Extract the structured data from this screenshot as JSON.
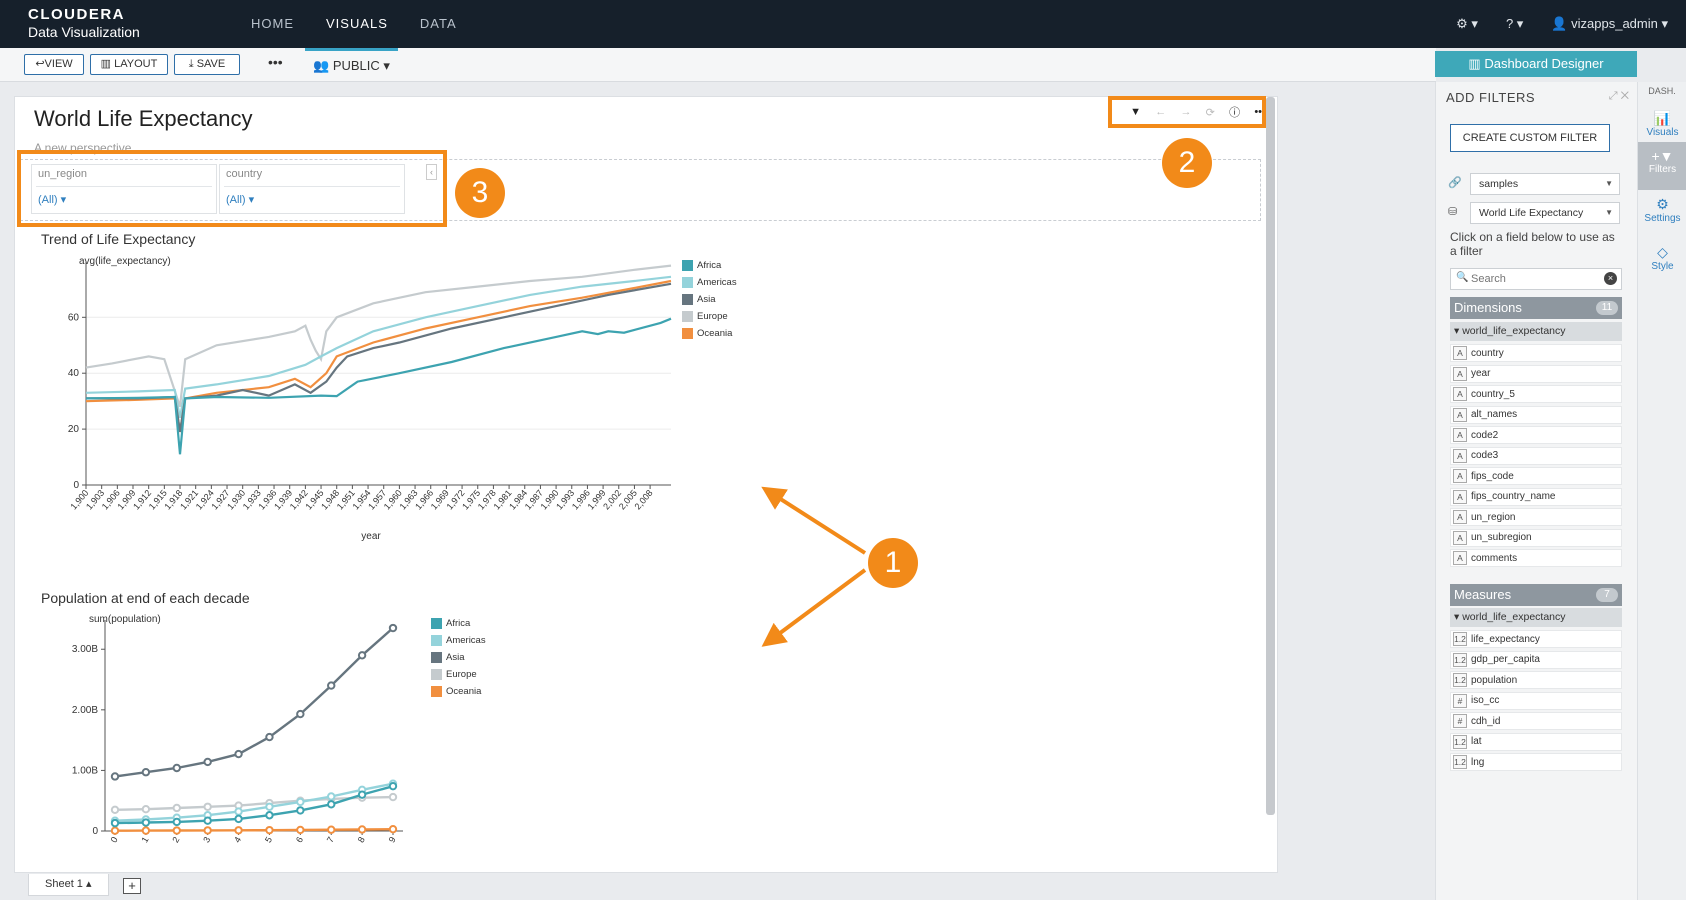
{
  "brand": {
    "line1": "CLOUDERA",
    "line2": "Data Visualization"
  },
  "nav": [
    {
      "label": "HOME"
    },
    {
      "label": "VISUALS"
    },
    {
      "label": "DATA"
    }
  ],
  "top_right": {
    "settings": "⚙ ▾",
    "help": "? ▾",
    "user": "vizapps_admin"
  },
  "toolbar": {
    "view": "↩VIEW",
    "layout": "LAYOUT",
    "save": "SAVE",
    "more": "•••",
    "public": "PUBLIC ▾"
  },
  "designer_button": "Dashboard Designer",
  "dashboard": {
    "title": "World Life Expectancy",
    "subtitle": "A new perspective"
  },
  "filters": [
    {
      "name": "un_region",
      "value": "(All) ▾"
    },
    {
      "name": "country",
      "value": "(All) ▾"
    }
  ],
  "sheet_tab": "Sheet 1 ▴",
  "legend": [
    {
      "name": "Africa",
      "color": "#3da3b0"
    },
    {
      "name": "Americas",
      "color": "#94d3db"
    },
    {
      "name": "Asia",
      "color": "#66757f"
    },
    {
      "name": "Europe",
      "color": "#c5cbce"
    },
    {
      "name": "Oceania",
      "color": "#f18f3f"
    }
  ],
  "chart_data": [
    {
      "type": "line",
      "title": "Trend of Life Expectancy",
      "xlabel": "year",
      "ylabel": "avg(life_expectancy)",
      "ylim": [
        0,
        78
      ],
      "yticks": [
        0,
        20,
        40,
        60
      ],
      "xlim": [
        1900,
        2012
      ],
      "xtick_labels": [
        "1,900",
        "1,903",
        "1,906",
        "1,909",
        "1,912",
        "1,915",
        "1,918",
        "1,921",
        "1,924",
        "1,927",
        "1,930",
        "1,933",
        "1,936",
        "1,939",
        "1,942",
        "1,945",
        "1,948",
        "1,951",
        "1,954",
        "1,957",
        "1,960",
        "1,963",
        "1,966",
        "1,969",
        "1,972",
        "1,975",
        "1,978",
        "1,981",
        "1,984",
        "1,987",
        "1,990",
        "1,993",
        "1,996",
        "1,999",
        "2,002",
        "2,005",
        "2,008"
      ],
      "series": [
        {
          "name": "Africa",
          "points": [
            [
              1900,
              31
            ],
            [
              1910,
              31.2
            ],
            [
              1917,
              31.5
            ],
            [
              1918,
              11
            ],
            [
              1919,
              31
            ],
            [
              1925,
              31.5
            ],
            [
              1935,
              31.2
            ],
            [
              1945,
              32
            ],
            [
              1948,
              31.8
            ],
            [
              1952,
              37
            ],
            [
              1960,
              40
            ],
            [
              1970,
              44
            ],
            [
              1980,
              49
            ],
            [
              1990,
              53
            ],
            [
              1995,
              55
            ],
            [
              1998,
              54
            ],
            [
              2000,
              55
            ],
            [
              2003,
              54.5
            ],
            [
              2010,
              58
            ],
            [
              2012,
              59.5
            ]
          ]
        },
        {
          "name": "Americas",
          "points": [
            [
              1900,
              33
            ],
            [
              1910,
              33.5
            ],
            [
              1917,
              34
            ],
            [
              1918,
              24
            ],
            [
              1919,
              34.5
            ],
            [
              1925,
              36
            ],
            [
              1935,
              39
            ],
            [
              1942,
              43
            ],
            [
              1945,
              46
            ],
            [
              1948,
              49
            ],
            [
              1955,
              55
            ],
            [
              1965,
              60
            ],
            [
              1975,
              64
            ],
            [
              1985,
              68
            ],
            [
              1995,
              71
            ],
            [
              2005,
              73
            ],
            [
              2012,
              74.5
            ]
          ]
        },
        {
          "name": "Asia",
          "points": [
            [
              1900,
              31
            ],
            [
              1910,
              31
            ],
            [
              1917,
              31.5
            ],
            [
              1918,
              19
            ],
            [
              1919,
              31
            ],
            [
              1925,
              32
            ],
            [
              1930,
              34
            ],
            [
              1935,
              32
            ],
            [
              1940,
              36
            ],
            [
              1943,
              33
            ],
            [
              1946,
              37
            ],
            [
              1948,
              42
            ],
            [
              1950,
              46
            ],
            [
              1955,
              49
            ],
            [
              1960,
              51
            ],
            [
              1970,
              56
            ],
            [
              1980,
              60
            ],
            [
              1990,
              64
            ],
            [
              2000,
              68
            ],
            [
              2012,
              72
            ]
          ]
        },
        {
          "name": "Europe",
          "points": [
            [
              1900,
              42
            ],
            [
              1905,
              43.5
            ],
            [
              1912,
              46
            ],
            [
              1915,
              45
            ],
            [
              1918,
              28
            ],
            [
              1919,
              45
            ],
            [
              1925,
              50
            ],
            [
              1935,
              53
            ],
            [
              1940,
              55
            ],
            [
              1942,
              57
            ],
            [
              1943,
              52
            ],
            [
              1944,
              48
            ],
            [
              1945,
              45
            ],
            [
              1946,
              55
            ],
            [
              1948,
              60
            ],
            [
              1955,
              65
            ],
            [
              1965,
              69
            ],
            [
              1975,
              71
            ],
            [
              1985,
              73
            ],
            [
              1995,
              74.5
            ],
            [
              2005,
              77
            ],
            [
              2012,
              78.5
            ]
          ]
        },
        {
          "name": "Oceania",
          "points": [
            [
              1900,
              30
            ],
            [
              1910,
              30.5
            ],
            [
              1917,
              31
            ],
            [
              1918,
              19
            ],
            [
              1919,
              31
            ],
            [
              1925,
              33
            ],
            [
              1935,
              35
            ],
            [
              1940,
              38
            ],
            [
              1943,
              35
            ],
            [
              1946,
              40
            ],
            [
              1948,
              46
            ],
            [
              1955,
              51
            ],
            [
              1965,
              56
            ],
            [
              1975,
              60
            ],
            [
              1985,
              64
            ],
            [
              1995,
              67
            ],
            [
              2005,
              70.5
            ],
            [
              2012,
              73
            ]
          ]
        }
      ]
    },
    {
      "type": "line",
      "title": "Population at end of each decade",
      "ylabel": "sum(population)",
      "ylim": [
        0,
        3.4
      ],
      "ytick_labels": [
        "0",
        "1.00B",
        "2.00B",
        "3.00B"
      ],
      "x": [
        0,
        1,
        2,
        3,
        4,
        5,
        6,
        7,
        8,
        9
      ],
      "series": [
        {
          "name": "Africa",
          "values": [
            0.13,
            0.14,
            0.15,
            0.17,
            0.2,
            0.26,
            0.34,
            0.44,
            0.6,
            0.74
          ]
        },
        {
          "name": "Americas",
          "values": [
            0.17,
            0.19,
            0.22,
            0.26,
            0.32,
            0.4,
            0.48,
            0.57,
            0.68,
            0.78
          ]
        },
        {
          "name": "Asia",
          "values": [
            0.9,
            0.97,
            1.04,
            1.14,
            1.27,
            1.55,
            1.93,
            2.4,
            2.9,
            3.35
          ]
        },
        {
          "name": "Europe",
          "values": [
            0.35,
            0.36,
            0.38,
            0.4,
            0.42,
            0.46,
            0.5,
            0.53,
            0.55,
            0.56
          ]
        },
        {
          "name": "Oceania",
          "values": [
            0.005,
            0.006,
            0.008,
            0.01,
            0.012,
            0.014,
            0.018,
            0.021,
            0.025,
            0.03
          ]
        }
      ]
    }
  ],
  "side_panel": {
    "title": "ADD FILTERS",
    "icons": "⤢ ✕",
    "custom_filter": "CREATE CUSTOM FILTER",
    "connection": "samples",
    "dataset": "World Life Expectancy",
    "hint": "Click on a field below to use as a filter",
    "search_placeholder": "Search",
    "dimensions": {
      "label": "Dimensions",
      "count": "11",
      "table": "world_life_expectancy",
      "fields": [
        {
          "type": "A",
          "name": "country"
        },
        {
          "type": "A",
          "name": "year"
        },
        {
          "type": "A",
          "name": "country_5"
        },
        {
          "type": "A",
          "name": "alt_names"
        },
        {
          "type": "A",
          "name": "code2"
        },
        {
          "type": "A",
          "name": "code3"
        },
        {
          "type": "A",
          "name": "fips_code"
        },
        {
          "type": "A",
          "name": "fips_country_name"
        },
        {
          "type": "A",
          "name": "un_region"
        },
        {
          "type": "A",
          "name": "un_subregion"
        },
        {
          "type": "A",
          "name": "comments"
        }
      ]
    },
    "measures": {
      "label": "Measures",
      "count": "7",
      "table": "world_life_expectancy",
      "fields": [
        {
          "type": "1.2",
          "name": "life_expectancy"
        },
        {
          "type": "1.2",
          "name": "gdp_per_capita"
        },
        {
          "type": "1.2",
          "name": "population"
        },
        {
          "type": "#",
          "name": "iso_cc"
        },
        {
          "type": "#",
          "name": "cdh_id"
        },
        {
          "type": "1.2",
          "name": "lat"
        },
        {
          "type": "1.2",
          "name": "lng"
        }
      ]
    }
  },
  "vertical_tabs": {
    "header": "DASH.",
    "items": [
      {
        "label": "Visuals"
      },
      {
        "label": "Filters"
      },
      {
        "label": "Settings"
      },
      {
        "label": "Style"
      }
    ]
  },
  "annotations": [
    "1",
    "2",
    "3"
  ]
}
